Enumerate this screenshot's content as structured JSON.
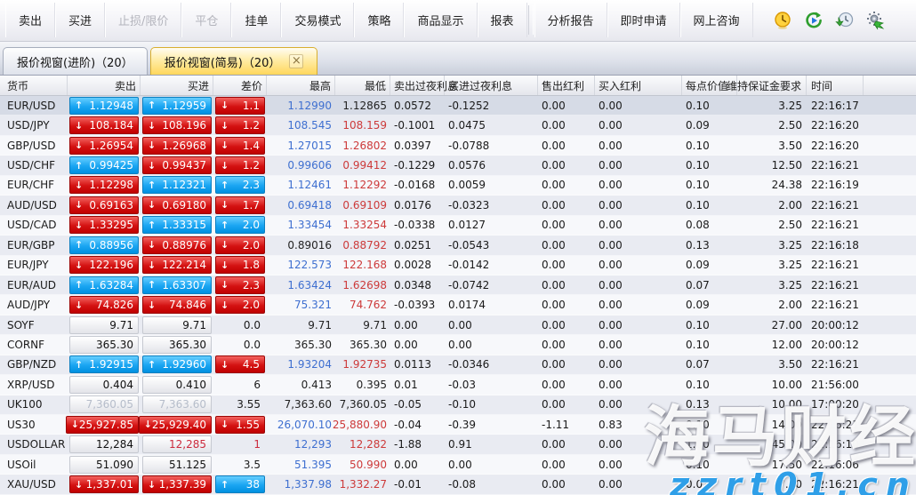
{
  "toolbar": {
    "groups": [
      [
        {
          "name": "sell",
          "label": "卖出",
          "enabled": true
        },
        {
          "name": "buy",
          "label": "买进",
          "enabled": true
        },
        {
          "name": "stop-limit",
          "label": "止损/限价",
          "enabled": false
        },
        {
          "name": "close-position",
          "label": "平仓",
          "enabled": false
        },
        {
          "name": "pending-order",
          "label": "挂单",
          "enabled": true
        },
        {
          "name": "trade-mode",
          "label": "交易模式",
          "enabled": true
        },
        {
          "name": "strategy",
          "label": "策略",
          "enabled": true
        },
        {
          "name": "product-display",
          "label": "商品显示",
          "enabled": true
        },
        {
          "name": "report",
          "label": "报表",
          "enabled": true
        }
      ],
      [
        {
          "name": "analysis-report",
          "label": "分析报告",
          "enabled": true
        },
        {
          "name": "instant-apply",
          "label": "即时申请",
          "enabled": true
        },
        {
          "name": "online-consult",
          "label": "网上咨询",
          "enabled": true
        }
      ]
    ],
    "icons": [
      "clock-icon",
      "replay-icon",
      "history-download-icon",
      "settings-sync-icon"
    ]
  },
  "tabs": [
    {
      "name": "quote-advanced",
      "label": "报价视窗(进阶)（20）",
      "active": false,
      "closable": false
    },
    {
      "name": "quote-simple",
      "label": "报价视窗(简易)（20）",
      "active": true,
      "closable": true,
      "close_glyph": "×"
    }
  ],
  "table": {
    "columns": [
      {
        "key": "symbol",
        "label": "货币"
      },
      {
        "key": "sell",
        "label": "卖出"
      },
      {
        "key": "buy",
        "label": "买进"
      },
      {
        "key": "spread",
        "label": "差价"
      },
      {
        "key": "high",
        "label": "最高"
      },
      {
        "key": "low",
        "label": "最低"
      },
      {
        "key": "sellon",
        "label": "卖出过夜利息"
      },
      {
        "key": "buyon",
        "label": "买进过夜利息"
      },
      {
        "key": "selldiv",
        "label": "售出红利"
      },
      {
        "key": "buydiv",
        "label": "买入红利"
      },
      {
        "key": "pip",
        "label": "每点价值"
      },
      {
        "key": "margin",
        "label": "维持保证金要求"
      },
      {
        "key": "time",
        "label": "时间"
      }
    ],
    "rows": [
      {
        "symbol": "EUR/USD",
        "selected": true,
        "sell": {
          "v": "1.12948",
          "t": "up"
        },
        "buy": {
          "v": "1.12959",
          "t": "up"
        },
        "spread": {
          "v": "1.1",
          "t": "down"
        },
        "high": {
          "v": "1.12990",
          "c": "blue"
        },
        "low": {
          "v": "1.12865",
          "c": "black"
        },
        "sell_on": "0.0572",
        "buy_on": "-0.1252",
        "sell_div": "0.00",
        "buy_div": "0.00",
        "pip": "0.10",
        "margin": "3.25",
        "time": "22:16:17"
      },
      {
        "symbol": "USD/JPY",
        "sell": {
          "v": "108.184",
          "t": "down"
        },
        "buy": {
          "v": "108.196",
          "t": "down"
        },
        "spread": {
          "v": "1.2",
          "t": "down"
        },
        "high": {
          "v": "108.545",
          "c": "blue"
        },
        "low": {
          "v": "108.159",
          "c": "red"
        },
        "sell_on": "-0.1001",
        "buy_on": "0.0475",
        "sell_div": "0.00",
        "buy_div": "0.00",
        "pip": "0.09",
        "margin": "2.50",
        "time": "22:16:20"
      },
      {
        "symbol": "GBP/USD",
        "sell": {
          "v": "1.26954",
          "t": "down"
        },
        "buy": {
          "v": "1.26968",
          "t": "down"
        },
        "spread": {
          "v": "1.4",
          "t": "down"
        },
        "high": {
          "v": "1.27015",
          "c": "blue"
        },
        "low": {
          "v": "1.26802",
          "c": "red"
        },
        "sell_on": "0.0397",
        "buy_on": "-0.0788",
        "sell_div": "0.00",
        "buy_div": "0.00",
        "pip": "0.10",
        "margin": "3.50",
        "time": "22:16:20"
      },
      {
        "symbol": "USD/CHF",
        "sell": {
          "v": "0.99425",
          "t": "up"
        },
        "buy": {
          "v": "0.99437",
          "t": "down"
        },
        "spread": {
          "v": "1.2",
          "t": "down"
        },
        "high": {
          "v": "0.99606",
          "c": "blue"
        },
        "low": {
          "v": "0.99412",
          "c": "red"
        },
        "sell_on": "-0.1229",
        "buy_on": "0.0576",
        "sell_div": "0.00",
        "buy_div": "0.00",
        "pip": "0.10",
        "margin": "12.50",
        "time": "22:16:21"
      },
      {
        "symbol": "EUR/CHF",
        "sell": {
          "v": "1.12298",
          "t": "down"
        },
        "buy": {
          "v": "1.12321",
          "t": "up"
        },
        "spread": {
          "v": "2.3",
          "t": "up"
        },
        "high": {
          "v": "1.12461",
          "c": "blue"
        },
        "low": {
          "v": "1.12292",
          "c": "red"
        },
        "sell_on": "-0.0168",
        "buy_on": "0.0059",
        "sell_div": "0.00",
        "buy_div": "0.00",
        "pip": "0.10",
        "margin": "24.38",
        "time": "22:16:19"
      },
      {
        "symbol": "AUD/USD",
        "sell": {
          "v": "0.69163",
          "t": "down"
        },
        "buy": {
          "v": "0.69180",
          "t": "down"
        },
        "spread": {
          "v": "1.7",
          "t": "down"
        },
        "high": {
          "v": "0.69418",
          "c": "blue"
        },
        "low": {
          "v": "0.69109",
          "c": "red"
        },
        "sell_on": "0.0176",
        "buy_on": "-0.0323",
        "sell_div": "0.00",
        "buy_div": "0.00",
        "pip": "0.10",
        "margin": "2.00",
        "time": "22:16:21"
      },
      {
        "symbol": "USD/CAD",
        "sell": {
          "v": "1.33295",
          "t": "down"
        },
        "buy": {
          "v": "1.33315",
          "t": "up"
        },
        "spread": {
          "v": "2.0",
          "t": "up"
        },
        "high": {
          "v": "1.33454",
          "c": "blue"
        },
        "low": {
          "v": "1.33254",
          "c": "red"
        },
        "sell_on": "-0.0338",
        "buy_on": "0.0127",
        "sell_div": "0.00",
        "buy_div": "0.00",
        "pip": "0.08",
        "margin": "2.50",
        "time": "22:16:21"
      },
      {
        "symbol": "EUR/GBP",
        "sell": {
          "v": "0.88956",
          "t": "up"
        },
        "buy": {
          "v": "0.88976",
          "t": "down"
        },
        "spread": {
          "v": "2.0",
          "t": "down"
        },
        "high": {
          "v": "0.89016",
          "c": "black"
        },
        "low": {
          "v": "0.88792",
          "c": "red"
        },
        "sell_on": "0.0251",
        "buy_on": "-0.0543",
        "sell_div": "0.00",
        "buy_div": "0.00",
        "pip": "0.13",
        "margin": "3.25",
        "time": "22:16:18"
      },
      {
        "symbol": "EUR/JPY",
        "sell": {
          "v": "122.196",
          "t": "down"
        },
        "buy": {
          "v": "122.214",
          "t": "down"
        },
        "spread": {
          "v": "1.8",
          "t": "down"
        },
        "high": {
          "v": "122.573",
          "c": "blue"
        },
        "low": {
          "v": "122.168",
          "c": "red"
        },
        "sell_on": "0.0028",
        "buy_on": "-0.0142",
        "sell_div": "0.00",
        "buy_div": "0.00",
        "pip": "0.09",
        "margin": "3.25",
        "time": "22:16:21"
      },
      {
        "symbol": "EUR/AUD",
        "sell": {
          "v": "1.63284",
          "t": "up"
        },
        "buy": {
          "v": "1.63307",
          "t": "up"
        },
        "spread": {
          "v": "2.3",
          "t": "down"
        },
        "high": {
          "v": "1.63424",
          "c": "blue"
        },
        "low": {
          "v": "1.62698",
          "c": "red"
        },
        "sell_on": "0.0348",
        "buy_on": "-0.0742",
        "sell_div": "0.00",
        "buy_div": "0.00",
        "pip": "0.07",
        "margin": "3.25",
        "time": "22:16:21"
      },
      {
        "symbol": "AUD/JPY",
        "sell": {
          "v": "74.826",
          "t": "down"
        },
        "buy": {
          "v": "74.846",
          "t": "down"
        },
        "spread": {
          "v": "2.0",
          "t": "down"
        },
        "high": {
          "v": "75.321",
          "c": "blue"
        },
        "low": {
          "v": "74.762",
          "c": "red"
        },
        "sell_on": "-0.0393",
        "buy_on": "0.0174",
        "sell_div": "0.00",
        "buy_div": "0.00",
        "pip": "0.09",
        "margin": "2.00",
        "time": "22:16:21"
      },
      {
        "symbol": "SOYF",
        "sell": {
          "v": "9.71",
          "t": "plain"
        },
        "buy": {
          "v": "9.71",
          "t": "plain"
        },
        "spread": {
          "v": "0.0",
          "t": "text"
        },
        "high": {
          "v": "9.71",
          "c": "black"
        },
        "low": {
          "v": "9.71",
          "c": "black"
        },
        "sell_on": "0.00",
        "buy_on": "0.00",
        "sell_div": "0.00",
        "buy_div": "0.00",
        "pip": "0.10",
        "margin": "27.00",
        "time": "20:00:12"
      },
      {
        "symbol": "CORNF",
        "sell": {
          "v": "365.30",
          "t": "plain"
        },
        "buy": {
          "v": "365.30",
          "t": "plain"
        },
        "spread": {
          "v": "0.0",
          "t": "text"
        },
        "high": {
          "v": "365.30",
          "c": "black"
        },
        "low": {
          "v": "365.30",
          "c": "black"
        },
        "sell_on": "0.00",
        "buy_on": "0.00",
        "sell_div": "0.00",
        "buy_div": "0.00",
        "pip": "0.10",
        "margin": "12.00",
        "time": "20:00:12"
      },
      {
        "symbol": "GBP/NZD",
        "sell": {
          "v": "1.92915",
          "t": "up"
        },
        "buy": {
          "v": "1.92960",
          "t": "up"
        },
        "spread": {
          "v": "4.5",
          "t": "down"
        },
        "high": {
          "v": "1.93204",
          "c": "blue"
        },
        "low": {
          "v": "1.92735",
          "c": "red"
        },
        "sell_on": "0.0113",
        "buy_on": "-0.0346",
        "sell_div": "0.00",
        "buy_div": "0.00",
        "pip": "0.07",
        "margin": "3.50",
        "time": "22:16:21"
      },
      {
        "symbol": "XRP/USD",
        "sell": {
          "v": "0.404",
          "t": "plain"
        },
        "buy": {
          "v": "0.410",
          "t": "plain"
        },
        "spread": {
          "v": "6",
          "t": "text"
        },
        "high": {
          "v": "0.413",
          "c": "black"
        },
        "low": {
          "v": "0.395",
          "c": "black"
        },
        "sell_on": "0.01",
        "buy_on": "-0.03",
        "sell_div": "0.00",
        "buy_div": "0.00",
        "pip": "0.10",
        "margin": "10.00",
        "time": "21:56:00"
      },
      {
        "symbol": "UK100",
        "sell": {
          "v": "7,360.05",
          "t": "gray"
        },
        "buy": {
          "v": "7,363.60",
          "t": "gray"
        },
        "spread": {
          "v": "3.55",
          "t": "text"
        },
        "high": {
          "v": "7,363.60",
          "c": "black"
        },
        "low": {
          "v": "7,360.05",
          "c": "black"
        },
        "sell_on": "-0.05",
        "buy_on": "-0.10",
        "sell_div": "0.00",
        "buy_div": "0.00",
        "pip": "0.13",
        "margin": "10.00",
        "time": "17:00:20"
      },
      {
        "symbol": "US30",
        "sell": {
          "v": "25,927.85",
          "t": "down"
        },
        "buy": {
          "v": "25,929.40",
          "t": "down"
        },
        "spread": {
          "v": "1.55",
          "t": "down"
        },
        "high": {
          "v": "26,070.10",
          "c": "blue"
        },
        "low": {
          "v": "25,880.90",
          "c": "red"
        },
        "sell_on": "-0.04",
        "buy_on": "-0.39",
        "sell_div": "-1.11",
        "buy_div": "0.83",
        "pip": "0.10",
        "margin": "14.00",
        "time": "22:16:21"
      },
      {
        "symbol": "USDOLLAR",
        "sell": {
          "v": "12,284",
          "t": "plain"
        },
        "buy": {
          "v": "12,285",
          "t": "redtext"
        },
        "spread": {
          "v": "1",
          "t": "textred"
        },
        "high": {
          "v": "12,293",
          "c": "blue"
        },
        "low": {
          "v": "12,282",
          "c": "red"
        },
        "sell_on": "-1.88",
        "buy_on": "0.91",
        "sell_div": "0.00",
        "buy_div": "0.00",
        "pip": "1.00",
        "margin": "45.00",
        "time": "22:16:10"
      },
      {
        "symbol": "USOil",
        "sell": {
          "v": "51.090",
          "t": "plain"
        },
        "buy": {
          "v": "51.125",
          "t": "plain"
        },
        "spread": {
          "v": "3.5",
          "t": "text"
        },
        "high": {
          "v": "51.395",
          "c": "blue"
        },
        "low": {
          "v": "50.990",
          "c": "red"
        },
        "sell_on": "0.00",
        "buy_on": "0.00",
        "sell_div": "0.00",
        "buy_div": "0.00",
        "pip": "0.10",
        "margin": "17.50",
        "time": "22:16:06"
      },
      {
        "symbol": "XAU/USD",
        "sell": {
          "v": "1,337.01",
          "t": "down"
        },
        "buy": {
          "v": "1,337.39",
          "t": "down"
        },
        "spread": {
          "v": "38",
          "t": "up"
        },
        "high": {
          "v": "1,337.98",
          "c": "blue"
        },
        "low": {
          "v": "1,332.27",
          "c": "red"
        },
        "sell_on": "-0.01",
        "buy_on": "-0.08",
        "sell_div": "0.00",
        "buy_div": "0.00",
        "pip": "0.01",
        "margin": "7.00",
        "time": "22:16:21"
      }
    ]
  },
  "watermark": {
    "line1": "海马财经",
    "line2": "zzrt01.cn"
  },
  "colors": {
    "up_blue": "#0090e0",
    "down_red": "#c00000",
    "high_text_blue": "#3e6fd0",
    "low_text_red": "#cd3a3a",
    "active_tab_yellow": "#ffd75c",
    "selected_row": "#d6dbe6"
  },
  "arrows": {
    "up": "↑",
    "down": "↓"
  }
}
